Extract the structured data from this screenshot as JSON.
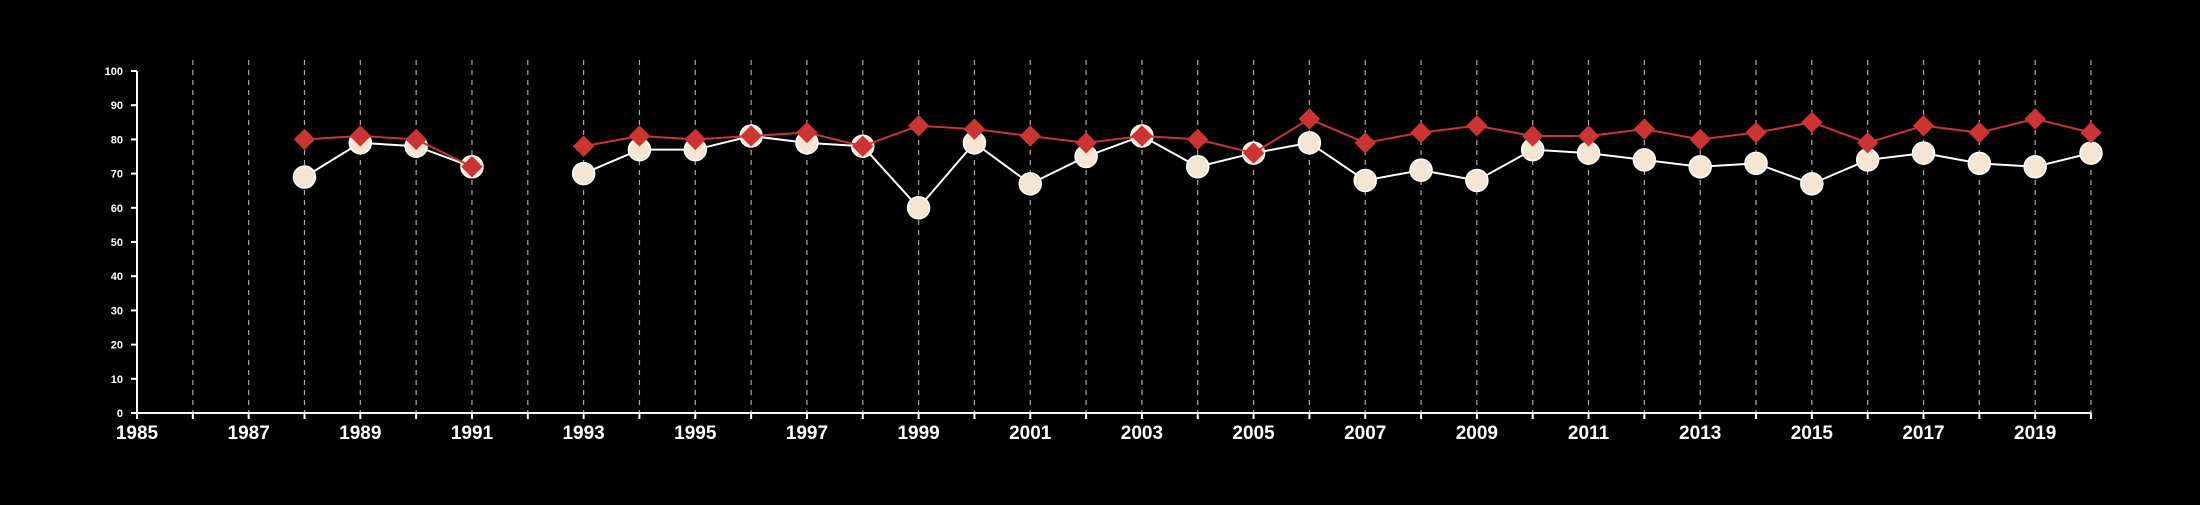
{
  "chart_data": {
    "type": "line",
    "title": "",
    "xlabel": "",
    "ylabel": "",
    "background": "#000000",
    "xlim": [
      1985,
      2020
    ],
    "ylim": [
      0,
      100
    ],
    "x_ticks": [
      1985,
      1987,
      1989,
      1991,
      1993,
      1995,
      1997,
      1999,
      2001,
      2003,
      2005,
      2007,
      2009,
      2011,
      2013,
      2015,
      2017,
      2019
    ],
    "x_tick_labels": [
      "1985",
      "1987",
      "1989",
      "1991",
      "1993",
      "1995",
      "1997",
      "1999",
      "2001",
      "2003",
      "2005",
      "2007",
      "2009",
      "2011",
      "2013",
      "2015",
      "2017",
      "2019"
    ],
    "y_ticks": [
      0,
      10,
      20,
      30,
      40,
      50,
      60,
      70,
      80,
      90,
      100
    ],
    "y_tick_labels": [
      "0",
      "10",
      "20",
      "30",
      "40",
      "50",
      "60",
      "70",
      "80",
      "90",
      "100"
    ],
    "grid": "vertical dashed lines at every year",
    "legend": "none",
    "x": [
      1988,
      1989,
      1990,
      1991,
      1992,
      1993,
      1994,
      1995,
      1996,
      1997,
      1998,
      1999,
      2000,
      2001,
      2002,
      2003,
      2004,
      2005,
      2006,
      2007,
      2008,
      2009,
      2010,
      2011,
      2012,
      2013,
      2014,
      2015,
      2016,
      2017,
      2018,
      2019,
      2020
    ],
    "series": [
      {
        "marker": "circle",
        "color": "#f5e6d3",
        "line_color": "#ffffff",
        "values": [
          69,
          79,
          78,
          72,
          null,
          70,
          77,
          77,
          81,
          79,
          78,
          60,
          79,
          67,
          75,
          81,
          72,
          76,
          79,
          68,
          71,
          68,
          77,
          76,
          74,
          72,
          73,
          67,
          74,
          76,
          73,
          72,
          76
        ]
      },
      {
        "marker": "diamond",
        "color": "#cc3333",
        "line_color": "#cc3333",
        "values": [
          80,
          81,
          80,
          72,
          null,
          78,
          81,
          80,
          81,
          82,
          78,
          84,
          83,
          81,
          79,
          81,
          80,
          76,
          86,
          79,
          82,
          84,
          81,
          81,
          83,
          80,
          82,
          85,
          79,
          84,
          82,
          86,
          82
        ]
      }
    ]
  }
}
